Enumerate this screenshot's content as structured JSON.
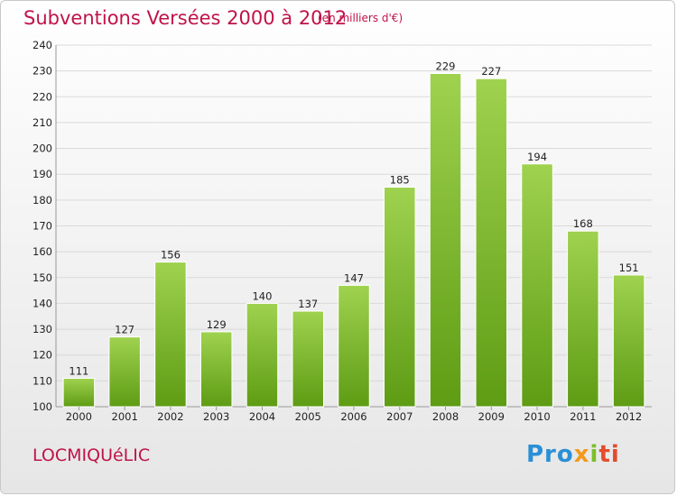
{
  "header": {
    "title": "Subventions Versées 2000 à 2012",
    "subtitle": "(en milliers d'€)"
  },
  "footer": {
    "commune": "LOCMIQUéLIC",
    "logo_parts": [
      "Pro",
      "x",
      "i",
      "ti"
    ]
  },
  "colors": {
    "title": "#c0134a",
    "bar_top": "#9fd24f",
    "bar_bottom": "#5e9c14",
    "grid": "#d9d9d9"
  },
  "chart_data": {
    "type": "bar",
    "title": "Subventions Versées 2000 à 2012",
    "subtitle": "(en milliers d'€)",
    "xlabel": "",
    "ylabel": "",
    "categories": [
      "2000",
      "2001",
      "2002",
      "2003",
      "2004",
      "2005",
      "2006",
      "2007",
      "2008",
      "2009",
      "2010",
      "2011",
      "2012"
    ],
    "values": [
      111,
      127,
      156,
      129,
      140,
      137,
      147,
      185,
      229,
      227,
      194,
      168,
      151
    ],
    "ylim": [
      100,
      240
    ],
    "yticks": [
      100,
      110,
      120,
      130,
      140,
      150,
      160,
      170,
      180,
      190,
      200,
      210,
      220,
      230,
      240
    ],
    "grid": true,
    "data_labels": true
  }
}
